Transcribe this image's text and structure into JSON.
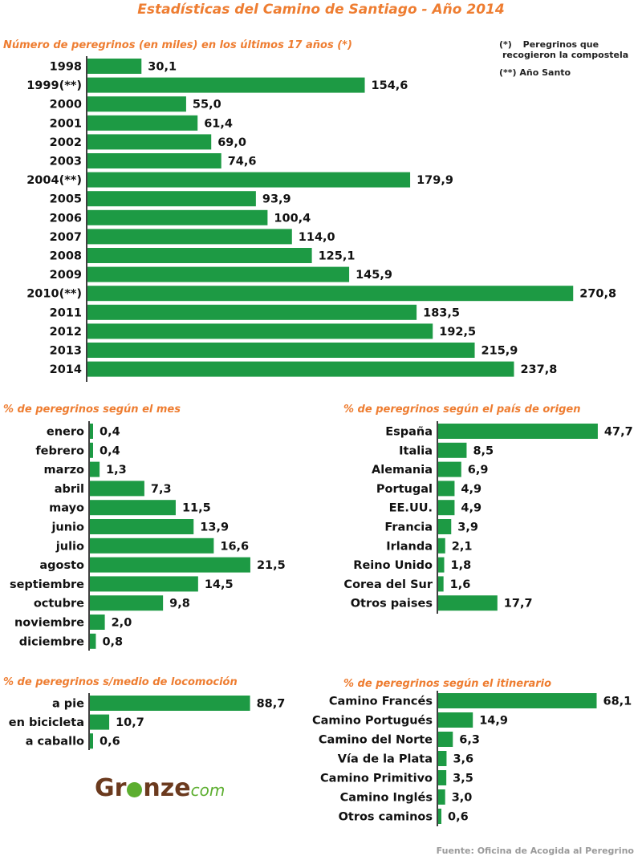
{
  "title": "Estadísticas del Camino de Santiago - Año 2014",
  "notes": {
    "note1_mark": "(*)",
    "note1_line1": "Peregrinos que",
    "note1_line2": "recogieron la compostela",
    "note2": "(**) Año Santo"
  },
  "source": "Fuente: Oficina de Acogida al Peregrino",
  "logo": {
    "main_left": "Gr",
    "main_right": "nze",
    "suffix": "com",
    "icon": "tree-icon"
  },
  "colors": {
    "bar": "#1d9a44",
    "title": "#ee7d31"
  },
  "chart_data": [
    {
      "id": "years",
      "type": "bar",
      "title": "Número de peregrinos (en miles) en los últimos 17 años (*)",
      "categories": [
        "1998",
        "1999(**)",
        "2000",
        "2001",
        "2002",
        "2003",
        "2004(**)",
        "2005",
        "2006",
        "2007",
        "2008",
        "2009",
        "2010(**)",
        "2011",
        "2012",
        "2013",
        "2014"
      ],
      "values": [
        30.1,
        154.6,
        55.0,
        61.4,
        69.0,
        74.6,
        179.9,
        93.9,
        100.4,
        114.0,
        125.1,
        145.9,
        270.8,
        183.5,
        192.5,
        215.9,
        237.8
      ],
      "labels": [
        "30,1",
        "154,6",
        "55,0",
        "61,4",
        "69,0",
        "74,6",
        "179,9",
        "93,9",
        "100,4",
        "114,0",
        "125,1",
        "145,9",
        "270,8",
        "183,5",
        "192,5",
        "215,9",
        "237,8"
      ]
    },
    {
      "id": "months",
      "type": "bar",
      "title": "% de peregrinos según el mes",
      "categories": [
        "enero",
        "febrero",
        "marzo",
        "abril",
        "mayo",
        "junio",
        "julio",
        "agosto",
        "septiembre",
        "octubre",
        "noviembre",
        "diciembre"
      ],
      "values": [
        0.4,
        0.4,
        1.3,
        7.3,
        11.5,
        13.9,
        16.6,
        21.5,
        14.5,
        9.8,
        2.0,
        0.8
      ],
      "labels": [
        "0,4",
        "0,4",
        "1,3",
        "7,3",
        "11,5",
        "13,9",
        "16,6",
        "21,5",
        "14,5",
        "9,8",
        "2,0",
        "0,8"
      ]
    },
    {
      "id": "countries",
      "type": "bar",
      "title": "% de peregrinos según el país de origen",
      "categories": [
        "España",
        "Italia",
        "Alemania",
        "Portugal",
        "EE.UU.",
        "Francia",
        "Irlanda",
        "Reino Unido",
        "Corea del Sur",
        "Otros paises"
      ],
      "values": [
        47.7,
        8.5,
        6.9,
        4.9,
        4.9,
        3.9,
        2.1,
        1.8,
        1.6,
        17.7
      ],
      "labels": [
        "47,7",
        "8,5",
        "6,9",
        "4,9",
        "4,9",
        "3,9",
        "2,1",
        "1,8",
        "1,6",
        "17,7"
      ]
    },
    {
      "id": "transport",
      "type": "bar",
      "title": "% de peregrinos s/medio de locomoción",
      "categories": [
        "a pie",
        "en bicicleta",
        "a caballo"
      ],
      "values": [
        88.7,
        10.7,
        0.6
      ],
      "labels": [
        "88,7",
        "10,7",
        "0,6"
      ]
    },
    {
      "id": "routes",
      "type": "bar",
      "title": "% de peregrinos según el itinerario",
      "categories": [
        "Camino Francés",
        "Camino Portugués",
        "Camino del Norte",
        "Vía de la Plata",
        "Camino Primitivo",
        "Camino Inglés",
        "Otros caminos"
      ],
      "values": [
        68.1,
        14.9,
        6.3,
        3.6,
        3.5,
        3.0,
        0.6
      ],
      "labels": [
        "68,1",
        "14,9",
        "6,3",
        "3,6",
        "3,5",
        "3,0",
        "0,6"
      ]
    }
  ]
}
